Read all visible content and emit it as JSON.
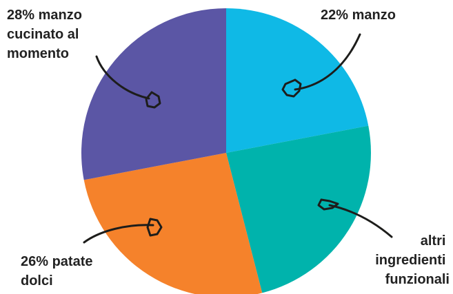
{
  "chart_data": {
    "type": "pie",
    "title": "",
    "start_angle_deg": 0,
    "direction": "clockwise",
    "slices": [
      {
        "label_lines": [
          "22% manzo"
        ],
        "value": 22,
        "color": "#0fb9e6"
      },
      {
        "label_lines": [
          "altri",
          "ingredienti",
          "funzionali"
        ],
        "value": 24,
        "color": "#00b3ac"
      },
      {
        "label_lines": [
          "26% patate",
          "dolci"
        ],
        "value": 26,
        "color": "#f5822b"
      },
      {
        "label_lines": [
          "28% manzo",
          "cucinato al",
          "momento"
        ],
        "value": 28,
        "color": "#5b56a5"
      }
    ]
  }
}
